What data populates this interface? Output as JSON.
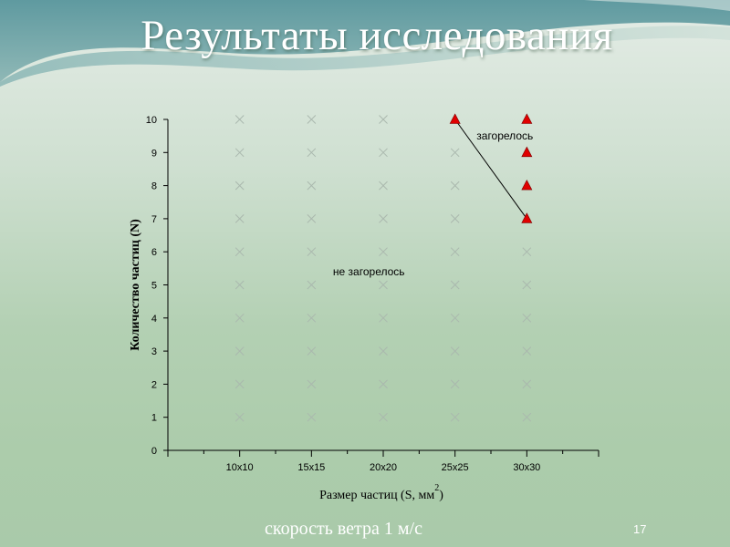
{
  "slide": {
    "title": "Результаты исследования",
    "footer": "скорость ветра 1 м/с",
    "page_number": "17"
  },
  "colors": {
    "title_text": "#ffffff",
    "marker_red": "#e00000",
    "marker_grey": "#aab8ae",
    "axis": "#000000"
  },
  "chart_data": {
    "type": "scatter",
    "xlabel": "Размер частиц (S, мм",
    "xlabel_superscript": "2",
    "xlabel_suffix": ")",
    "ylabel": "Количество частиц (N)",
    "categories": [
      "10x10",
      "15x15",
      "20x20",
      "25x25",
      "30x30"
    ],
    "category_positions": [
      1,
      2,
      3,
      4,
      5
    ],
    "xlim": [
      0,
      6
    ],
    "ylim": [
      0,
      10
    ],
    "yticks": [
      0,
      1,
      2,
      3,
      4,
      5,
      6,
      7,
      8,
      9,
      10
    ],
    "grid": false,
    "series": [
      {
        "name": "не загорелось",
        "marker": "cross",
        "color": "#aab8ae",
        "points": [
          [
            1,
            1
          ],
          [
            1,
            2
          ],
          [
            1,
            3
          ],
          [
            1,
            4
          ],
          [
            1,
            5
          ],
          [
            1,
            6
          ],
          [
            1,
            7
          ],
          [
            1,
            8
          ],
          [
            1,
            9
          ],
          [
            1,
            10
          ],
          [
            2,
            1
          ],
          [
            2,
            2
          ],
          [
            2,
            3
          ],
          [
            2,
            4
          ],
          [
            2,
            5
          ],
          [
            2,
            6
          ],
          [
            2,
            7
          ],
          [
            2,
            8
          ],
          [
            2,
            9
          ],
          [
            2,
            10
          ],
          [
            3,
            1
          ],
          [
            3,
            2
          ],
          [
            3,
            3
          ],
          [
            3,
            4
          ],
          [
            3,
            5
          ],
          [
            3,
            6
          ],
          [
            3,
            7
          ],
          [
            3,
            8
          ],
          [
            3,
            9
          ],
          [
            3,
            10
          ],
          [
            4,
            1
          ],
          [
            4,
            2
          ],
          [
            4,
            3
          ],
          [
            4,
            4
          ],
          [
            4,
            5
          ],
          [
            4,
            6
          ],
          [
            4,
            7
          ],
          [
            4,
            8
          ],
          [
            4,
            9
          ],
          [
            5,
            1
          ],
          [
            5,
            2
          ],
          [
            5,
            3
          ],
          [
            5,
            4
          ],
          [
            5,
            5
          ],
          [
            5,
            6
          ]
        ]
      },
      {
        "name": "загорелось",
        "marker": "triangle",
        "color": "#e00000",
        "points": [
          [
            4,
            10
          ],
          [
            5,
            10
          ],
          [
            5,
            9
          ],
          [
            5,
            8
          ],
          [
            5,
            7
          ]
        ]
      }
    ],
    "boundary_line": [
      [
        4,
        10
      ],
      [
        5,
        7
      ]
    ],
    "annotations": [
      {
        "text": "загорелось",
        "x": 4.3,
        "y": 9.5
      },
      {
        "text": "не загорелось",
        "x": 2.3,
        "y": 5.4
      }
    ]
  }
}
